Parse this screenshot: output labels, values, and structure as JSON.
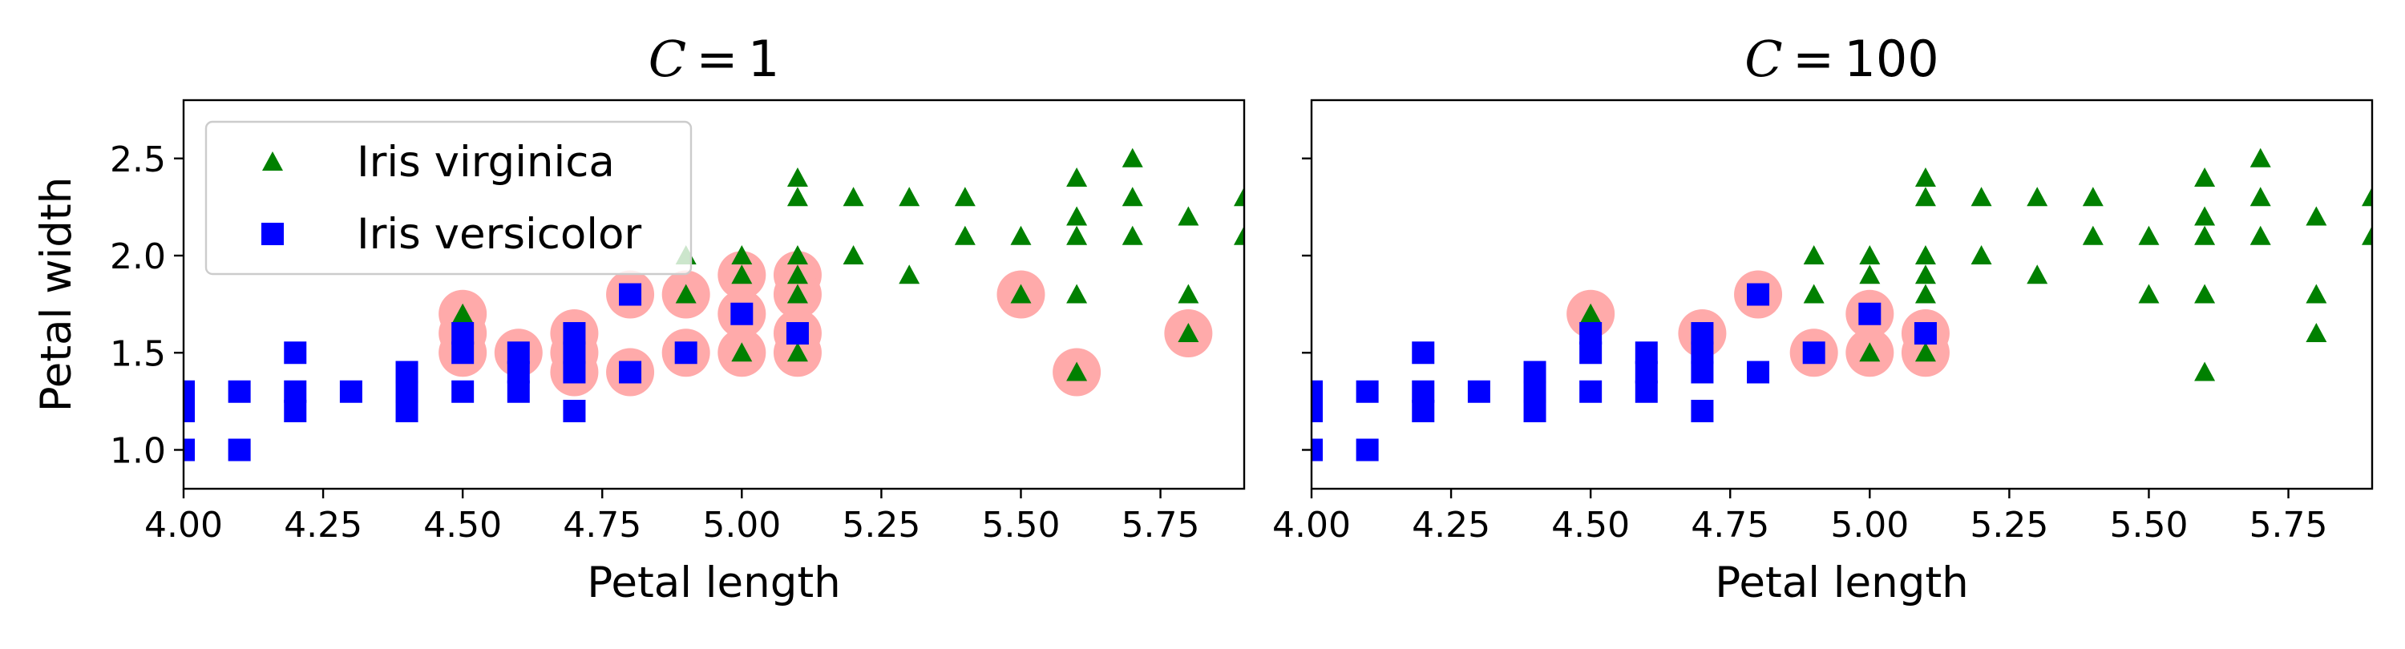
{
  "chart_data": [
    {
      "type": "scatter",
      "title": "C = 1",
      "title_var": "C",
      "title_rest": " = 1",
      "xlabel": "Petal length",
      "ylabel": "Petal width",
      "xlim": [
        4.0,
        5.9
      ],
      "ylim": [
        0.8,
        2.8
      ],
      "xticks": [
        "4.00",
        "4.25",
        "4.50",
        "4.75",
        "5.00",
        "5.25",
        "5.50",
        "5.75"
      ],
      "yticks": [
        "1.0",
        "1.5",
        "2.0",
        "2.5"
      ],
      "grid": false,
      "legend": {
        "position": "top-left",
        "entries": [
          {
            "label": "Iris virginica",
            "marker": "triangle",
            "color": "#008000"
          },
          {
            "label": "Iris versicolor",
            "marker": "square",
            "color": "#0000ff"
          }
        ]
      },
      "series": [
        {
          "name": "Iris virginica",
          "marker": "triangle",
          "color": "#008000",
          "points": [
            [
              4.5,
              1.7
            ],
            [
              4.9,
              1.8
            ],
            [
              5.0,
              1.5
            ],
            [
              5.1,
              1.5
            ],
            [
              5.1,
              1.8
            ],
            [
              5.1,
              1.9
            ],
            [
              5.1,
              2.0
            ],
            [
              5.1,
              2.3
            ],
            [
              5.1,
              2.4
            ],
            [
              4.9,
              2.0
            ],
            [
              5.0,
              2.0
            ],
            [
              5.0,
              1.9
            ],
            [
              5.2,
              2.0
            ],
            [
              5.2,
              2.3
            ],
            [
              5.3,
              1.9
            ],
            [
              5.3,
              2.3
            ],
            [
              5.4,
              2.1
            ],
            [
              5.4,
              2.3
            ],
            [
              5.5,
              1.8
            ],
            [
              5.5,
              2.1
            ],
            [
              5.6,
              1.4
            ],
            [
              5.6,
              1.8
            ],
            [
              5.6,
              2.1
            ],
            [
              5.6,
              2.2
            ],
            [
              5.6,
              2.4
            ],
            [
              5.7,
              2.1
            ],
            [
              5.7,
              2.3
            ],
            [
              5.7,
              2.5
            ],
            [
              5.8,
              1.6
            ],
            [
              5.8,
              1.8
            ],
            [
              5.8,
              2.2
            ],
            [
              5.9,
              2.1
            ],
            [
              5.9,
              2.3
            ]
          ]
        },
        {
          "name": "Iris versicolor",
          "marker": "square",
          "color": "#0000ff",
          "points": [
            [
              4.0,
              1.0
            ],
            [
              4.0,
              1.2
            ],
            [
              4.0,
              1.3
            ],
            [
              4.1,
              1.0
            ],
            [
              4.1,
              1.3
            ],
            [
              4.2,
              1.2
            ],
            [
              4.2,
              1.3
            ],
            [
              4.2,
              1.5
            ],
            [
              4.3,
              1.3
            ],
            [
              4.4,
              1.2
            ],
            [
              4.4,
              1.3
            ],
            [
              4.4,
              1.4
            ],
            [
              4.5,
              1.3
            ],
            [
              4.5,
              1.5
            ],
            [
              4.5,
              1.6
            ],
            [
              4.6,
              1.3
            ],
            [
              4.6,
              1.4
            ],
            [
              4.6,
              1.5
            ],
            [
              4.7,
              1.2
            ],
            [
              4.7,
              1.4
            ],
            [
              4.7,
              1.5
            ],
            [
              4.7,
              1.6
            ],
            [
              4.8,
              1.4
            ],
            [
              4.8,
              1.8
            ],
            [
              4.9,
              1.5
            ],
            [
              5.0,
              1.7
            ],
            [
              5.1,
              1.6
            ]
          ]
        }
      ],
      "support_vectors": {
        "color": "#ffaaaa",
        "points": [
          [
            4.5,
            1.7
          ],
          [
            4.5,
            1.6
          ],
          [
            4.5,
            1.5
          ],
          [
            4.6,
            1.5
          ],
          [
            4.7,
            1.6
          ],
          [
            4.7,
            1.5
          ],
          [
            4.7,
            1.4
          ],
          [
            4.8,
            1.8
          ],
          [
            4.8,
            1.4
          ],
          [
            4.9,
            1.8
          ],
          [
            4.9,
            1.5
          ],
          [
            5.0,
            1.9
          ],
          [
            5.0,
            1.7
          ],
          [
            5.0,
            1.5
          ],
          [
            5.1,
            1.9
          ],
          [
            5.1,
            1.8
          ],
          [
            5.1,
            1.6
          ],
          [
            5.1,
            1.5
          ],
          [
            5.5,
            1.8
          ],
          [
            5.6,
            1.4
          ],
          [
            5.8,
            1.6
          ]
        ]
      }
    },
    {
      "type": "scatter",
      "title": "C = 100",
      "title_var": "C",
      "title_rest": " = 100",
      "xlabel": "Petal length",
      "ylabel": "",
      "xlim": [
        4.0,
        5.9
      ],
      "ylim": [
        0.8,
        2.8
      ],
      "xticks": [
        "4.00",
        "4.25",
        "4.50",
        "4.75",
        "5.00",
        "5.25",
        "5.50",
        "5.75"
      ],
      "yticks": [],
      "grid": false,
      "series": [
        {
          "name": "Iris virginica",
          "marker": "triangle",
          "color": "#008000",
          "points": [
            [
              4.5,
              1.7
            ],
            [
              4.9,
              1.8
            ],
            [
              5.0,
              1.5
            ],
            [
              5.1,
              1.5
            ],
            [
              5.1,
              1.8
            ],
            [
              5.1,
              1.9
            ],
            [
              5.1,
              2.0
            ],
            [
              5.1,
              2.3
            ],
            [
              5.1,
              2.4
            ],
            [
              4.9,
              2.0
            ],
            [
              5.0,
              2.0
            ],
            [
              5.0,
              1.9
            ],
            [
              5.2,
              2.0
            ],
            [
              5.2,
              2.3
            ],
            [
              5.3,
              1.9
            ],
            [
              5.3,
              2.3
            ],
            [
              5.4,
              2.1
            ],
            [
              5.4,
              2.3
            ],
            [
              5.5,
              1.8
            ],
            [
              5.5,
              2.1
            ],
            [
              5.6,
              1.4
            ],
            [
              5.6,
              1.8
            ],
            [
              5.6,
              2.1
            ],
            [
              5.6,
              2.2
            ],
            [
              5.6,
              2.4
            ],
            [
              5.7,
              2.1
            ],
            [
              5.7,
              2.3
            ],
            [
              5.7,
              2.5
            ],
            [
              5.8,
              1.6
            ],
            [
              5.8,
              1.8
            ],
            [
              5.8,
              2.2
            ],
            [
              5.9,
              2.1
            ],
            [
              5.9,
              2.3
            ]
          ]
        },
        {
          "name": "Iris versicolor",
          "marker": "square",
          "color": "#0000ff",
          "points": [
            [
              4.0,
              1.0
            ],
            [
              4.0,
              1.2
            ],
            [
              4.0,
              1.3
            ],
            [
              4.1,
              1.0
            ],
            [
              4.1,
              1.3
            ],
            [
              4.2,
              1.2
            ],
            [
              4.2,
              1.3
            ],
            [
              4.2,
              1.5
            ],
            [
              4.3,
              1.3
            ],
            [
              4.4,
              1.2
            ],
            [
              4.4,
              1.3
            ],
            [
              4.4,
              1.4
            ],
            [
              4.5,
              1.3
            ],
            [
              4.5,
              1.5
            ],
            [
              4.5,
              1.6
            ],
            [
              4.6,
              1.3
            ],
            [
              4.6,
              1.4
            ],
            [
              4.6,
              1.5
            ],
            [
              4.7,
              1.2
            ],
            [
              4.7,
              1.4
            ],
            [
              4.7,
              1.5
            ],
            [
              4.7,
              1.6
            ],
            [
              4.8,
              1.4
            ],
            [
              4.8,
              1.8
            ],
            [
              4.9,
              1.5
            ],
            [
              5.0,
              1.7
            ],
            [
              5.1,
              1.6
            ]
          ]
        }
      ],
      "support_vectors": {
        "color": "#ffaaaa",
        "points": [
          [
            4.5,
            1.7
          ],
          [
            4.7,
            1.6
          ],
          [
            4.8,
            1.8
          ],
          [
            4.9,
            1.5
          ],
          [
            5.0,
            1.7
          ],
          [
            5.0,
            1.5
          ],
          [
            5.1,
            1.6
          ],
          [
            5.1,
            1.5
          ]
        ]
      }
    }
  ]
}
